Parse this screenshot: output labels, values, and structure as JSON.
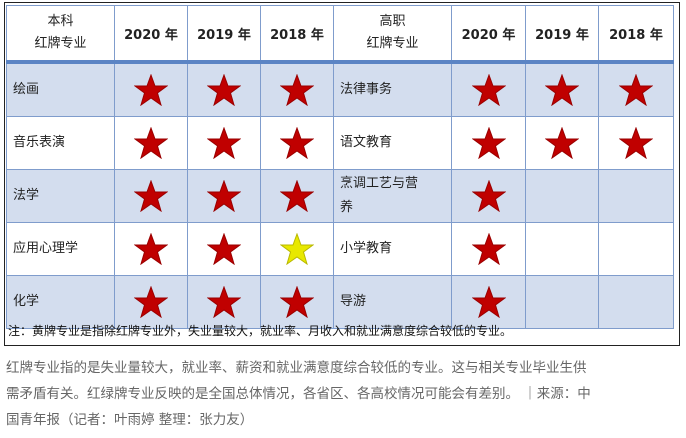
{
  "header": {
    "undergrad": [
      "本科",
      "红牌专业"
    ],
    "vocational": [
      "高职",
      "红牌专业"
    ],
    "years": [
      "2020 年",
      "2019 年",
      "2018 年"
    ]
  },
  "star_colors": {
    "red": "#c00000",
    "yellow": "#e8e800"
  },
  "rows": [
    {
      "undergrad": "绘画",
      "u_stars": [
        "red",
        "red",
        "red"
      ],
      "vocational": "法律事务",
      "v_stars": [
        "red",
        "red",
        "red"
      ]
    },
    {
      "undergrad": "音乐表演",
      "u_stars": [
        "red",
        "red",
        "red"
      ],
      "vocational": "语文教育",
      "v_stars": [
        "red",
        "red",
        "red"
      ]
    },
    {
      "undergrad": "法学",
      "u_stars": [
        "red",
        "red",
        "red"
      ],
      "vocational": "烹调工艺与营养",
      "v_stars": [
        "red",
        "",
        ""
      ]
    },
    {
      "undergrad": "应用心理学",
      "u_stars": [
        "red",
        "red",
        "yellow"
      ],
      "vocational": "小学教育",
      "v_stars": [
        "red",
        "",
        ""
      ]
    },
    {
      "undergrad": "化学",
      "u_stars": [
        "red",
        "red",
        "red"
      ],
      "vocational": "导游",
      "v_stars": [
        "red",
        "",
        ""
      ]
    }
  ],
  "note": "注：黄牌专业是指除红牌专业外，失业量较大，就业率、月收入和就业满意度综合较低的专业。",
  "paragraph": [
    "红牌专业指的是失业量较大，就业率、薪资和就业满意度综合较低的专业。这与相关专业毕业生供",
    "需矛盾有关。红绿牌专业反映的是全国总体情况，各省区、各高校情况可能会有差别。 ｜来源：中",
    "国青年报（记者：叶雨婷  整理：张力友）"
  ]
}
